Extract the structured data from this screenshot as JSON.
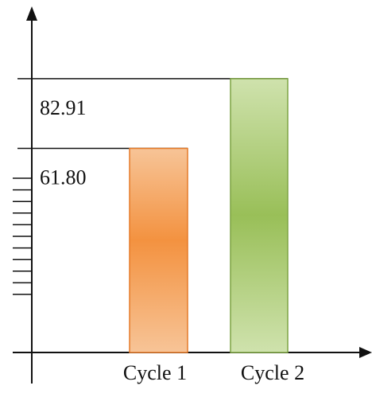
{
  "chart_data": {
    "type": "bar",
    "categories": [
      "Cycle 1",
      "Cycle 2"
    ],
    "values": [
      61.8,
      82.91
    ],
    "value_labels": [
      "61.80",
      "82.91"
    ],
    "title": "",
    "xlabel": "",
    "ylabel": "",
    "ylim": [
      0,
      100
    ],
    "grid": false,
    "legend": "none",
    "colors": {
      "Cycle 1": {
        "light": "#f7c497",
        "mid": "#f39240",
        "border": "#e57a28"
      },
      "Cycle 2": {
        "light": "#cfe2ad",
        "mid": "#99bf58",
        "border": "#7da443"
      }
    },
    "axis_color": "#111111"
  }
}
